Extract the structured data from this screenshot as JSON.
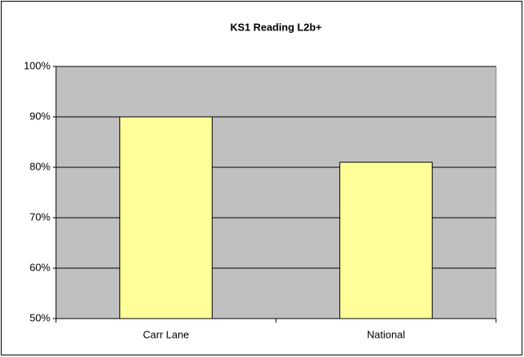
{
  "chart_data": {
    "type": "bar",
    "title": "KS1 Reading L2b+",
    "categories": [
      "Carr Lane",
      "National"
    ],
    "values": [
      90,
      81
    ],
    "color": "#ffff99",
    "ylim": [
      50,
      100
    ],
    "yticks": [
      {
        "value": 50,
        "label": "50%"
      },
      {
        "value": 60,
        "label": "60%"
      },
      {
        "value": 70,
        "label": "70%"
      },
      {
        "value": 80,
        "label": "80%"
      },
      {
        "value": 90,
        "label": "90%"
      },
      {
        "value": 100,
        "label": "100%"
      }
    ],
    "grid": true
  }
}
